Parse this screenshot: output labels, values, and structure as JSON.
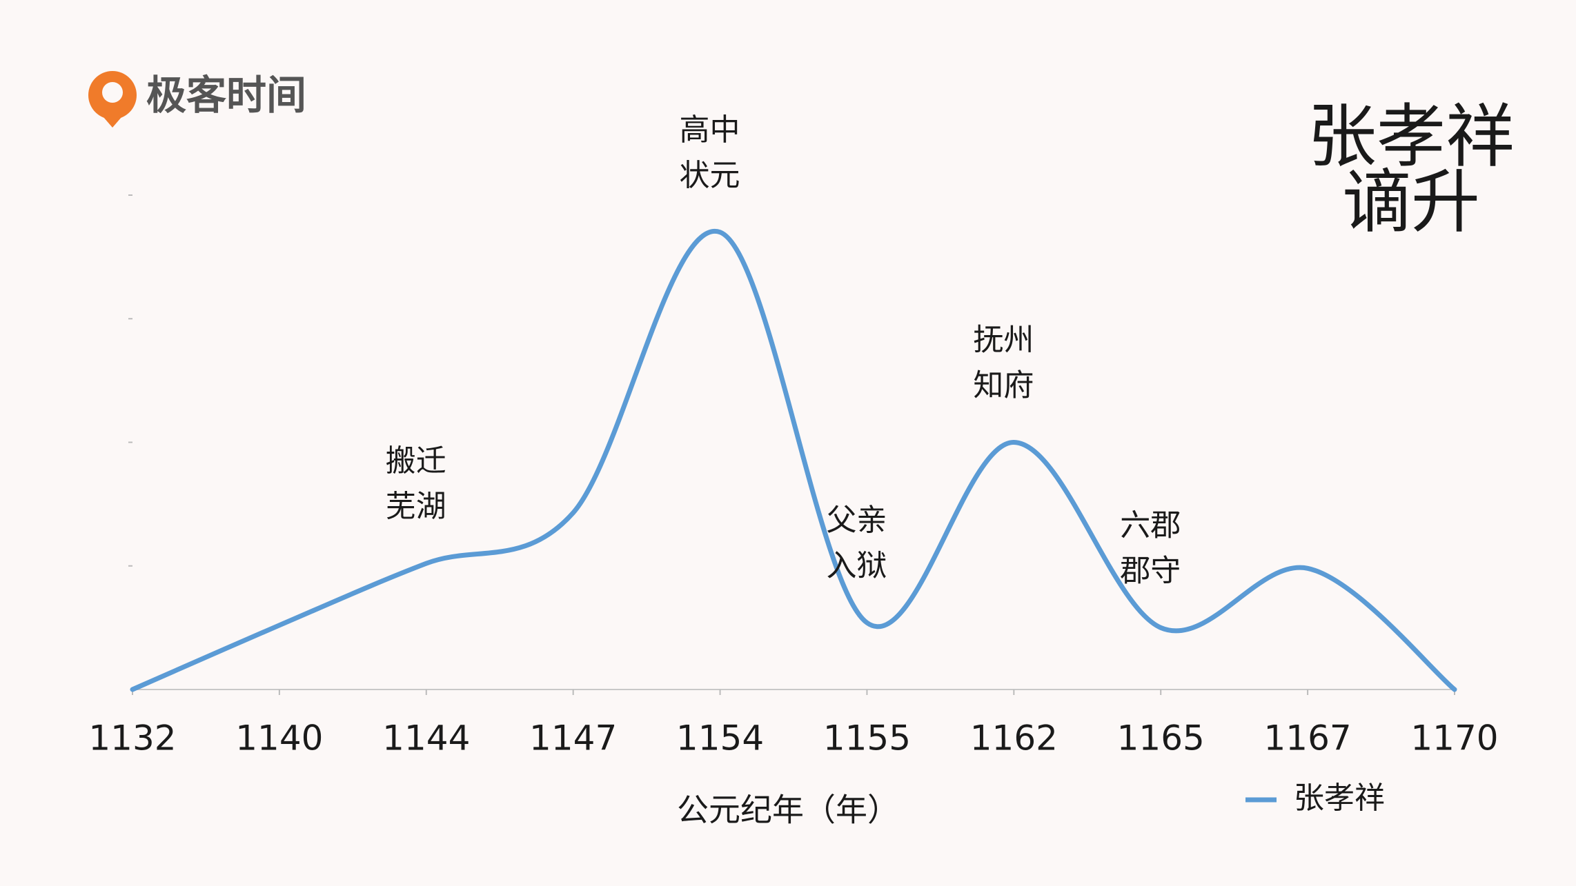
{
  "logo": "极客时间",
  "chart_data": {
    "type": "line",
    "title_lines": [
      "张孝祥",
      "谪升"
    ],
    "x_label": "公元纪年（年）",
    "categories": [
      "1132",
      "1140",
      "1144",
      "1147",
      "1154",
      "1155",
      "1162",
      "1165",
      "1167",
      "1170"
    ],
    "series": [
      {
        "name": "张孝祥",
        "color": "#5b9bd5",
        "values": [
          0,
          0.52,
          1.02,
          1.43,
          3.7,
          0.54,
          2.0,
          0.5,
          0.98,
          0
        ]
      }
    ],
    "ylim": [
      0,
      4
    ],
    "yticks": [
      1,
      2,
      3,
      4
    ],
    "annotations": [
      {
        "category": "1144",
        "lines": [
          "搬迁",
          "芜湖"
        ]
      },
      {
        "category": "1154",
        "lines": [
          "高中",
          "状元"
        ]
      },
      {
        "category": "1155",
        "lines": [
          "父亲",
          "入狱"
        ]
      },
      {
        "category": "1162",
        "lines": [
          "抚州",
          "知府"
        ]
      },
      {
        "category": "1165",
        "lines": [
          "六郡",
          "郡守"
        ]
      }
    ]
  }
}
